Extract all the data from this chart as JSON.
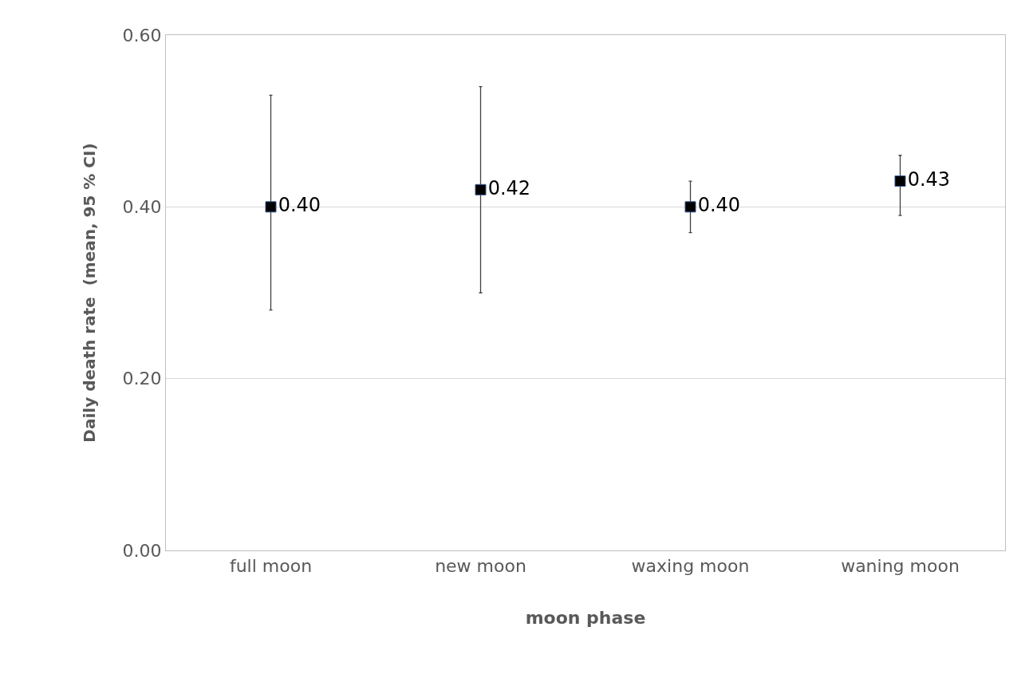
{
  "chart_data": {
    "type": "scatter",
    "xlabel": "moon phase",
    "ylabel": "Daily death rate  (mean, 95 % CI)",
    "categories": [
      "full moon",
      "new moon",
      "waxing moon",
      "waning moon"
    ],
    "values": [
      0.4,
      0.42,
      0.4,
      0.43
    ],
    "errors": [
      [
        0.28,
        0.53
      ],
      [
        0.3,
        0.54
      ],
      [
        0.37,
        0.43
      ],
      [
        0.39,
        0.46
      ]
    ],
    "value_labels": [
      "0.40",
      "0.42",
      "0.40",
      "0.43"
    ],
    "color": "#000000",
    "marker": "square",
    "ylim": [
      0,
      0.6
    ],
    "yticks": [
      {
        "value": 0,
        "label": "0.00"
      },
      {
        "value": 0.2,
        "label": "0.20"
      },
      {
        "value": 0.4,
        "label": "0.40"
      },
      {
        "value": 0.6,
        "label": "0.60"
      }
    ],
    "grid": "y"
  }
}
